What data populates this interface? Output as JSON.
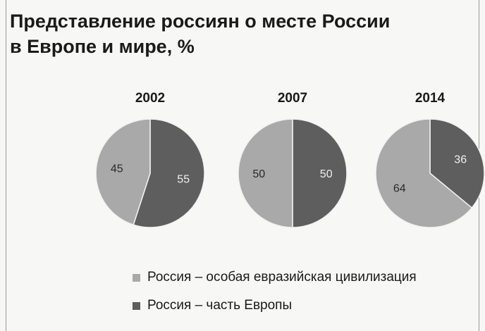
{
  "title_line1": "Представление россиян о месте России",
  "title_line2": "в Европе и мире, %",
  "chart_data": {
    "type": "pie",
    "title": "Представление россиян о месте России в Европе и мире, %",
    "series_names": [
      "Россия – особая евразийская цивилизация",
      "Россия – часть Европы"
    ],
    "colors": [
      "#a9a9a9",
      "#5e5e5e"
    ],
    "pies": [
      {
        "year": "2002",
        "values": [
          45,
          55
        ]
      },
      {
        "year": "2007",
        "values": [
          50,
          50
        ]
      },
      {
        "year": "2014",
        "values": [
          64,
          36
        ]
      }
    ],
    "legend_position": "bottom"
  }
}
